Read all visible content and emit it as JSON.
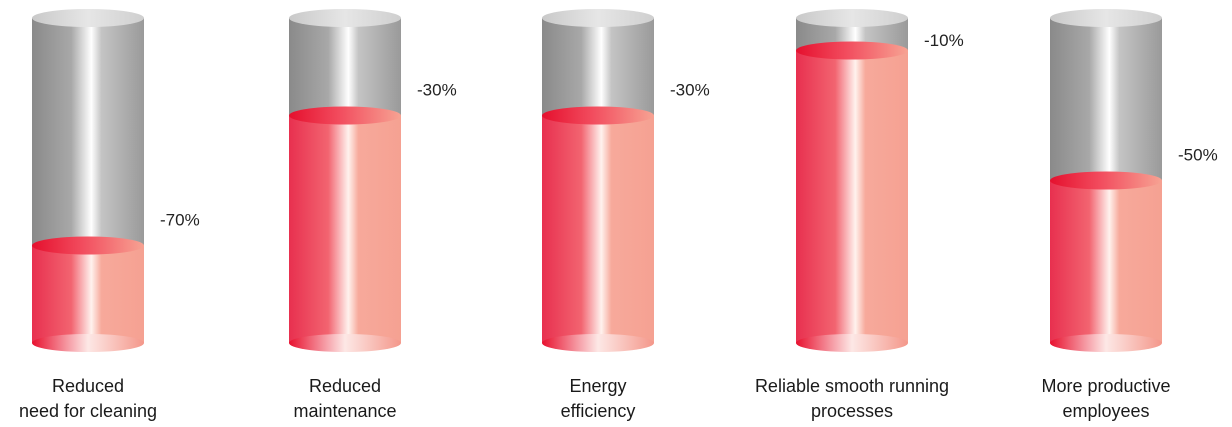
{
  "chart_data": {
    "type": "bar",
    "style": "3d-cylinder",
    "categories": [
      "Reduced need for cleaning",
      "Reduced maintenance",
      "Energy efficiency",
      "Reliable smooth running processes",
      "More productive employees"
    ],
    "category_label_lines": [
      [
        "Reduced",
        "need for cleaning"
      ],
      [
        "Reduced",
        "maintenance"
      ],
      [
        "Energy",
        "efficiency"
      ],
      [
        "Reliable smooth running",
        "processes"
      ],
      [
        "More productive",
        "employees"
      ]
    ],
    "values": [
      -70,
      -30,
      -30,
      -10,
      -50
    ],
    "value_labels": [
      "-70%",
      "-30%",
      "-30%",
      "-10%",
      "-50%"
    ],
    "ylim": [
      0,
      100
    ],
    "grid": false,
    "title": "",
    "xlabel": "",
    "ylabel": "",
    "colors": {
      "fill_dark": "#e8304f",
      "fill_light": "#f7a898",
      "empty_dark": "#8f8f8f",
      "empty_light": "#bdbdbd",
      "highlight": "#ffffff"
    }
  }
}
